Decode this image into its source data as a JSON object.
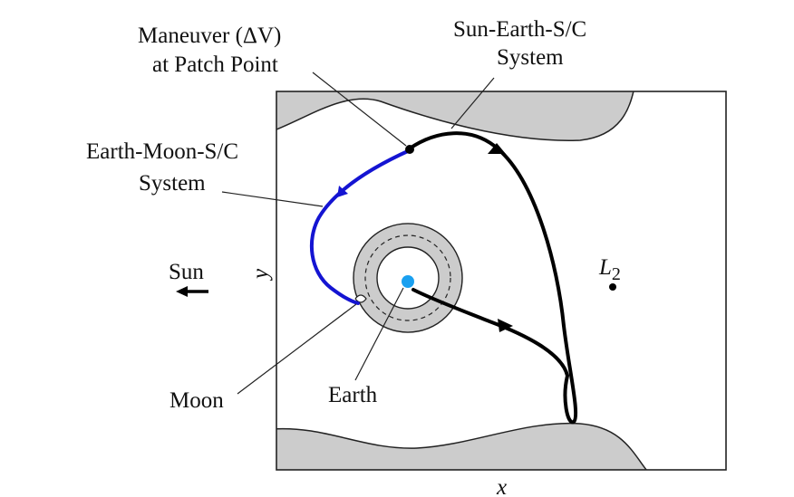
{
  "labels": {
    "maneuver_line1": "Maneuver (ΔV)",
    "maneuver_line2": "at Patch Point",
    "sun_earth_line1": "Sun-Earth-S/C",
    "sun_earth_line2": "System",
    "earth_moon_line1": "Earth-Moon-S/C",
    "earth_moon_line2": "System",
    "sun": "Sun",
    "y_axis": "y",
    "x_axis": "x",
    "l2_main": "L",
    "l2_sub": "2",
    "moon": "Moon",
    "earth": "Earth"
  },
  "colors": {
    "earth_moon_trajectory": "#1414d2",
    "sun_earth_trajectory": "#000000",
    "earth_fill": "#1aa0f0",
    "forbidden_region": "#cccccc",
    "outline": "#222222"
  }
}
